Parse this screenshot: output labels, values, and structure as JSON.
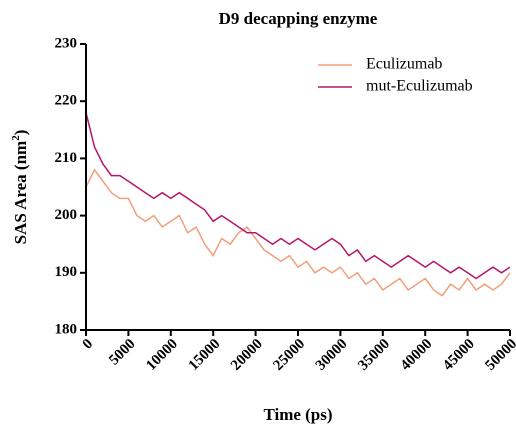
{
  "chart_data": {
    "type": "line",
    "title": "D9 decapping enzyme",
    "xlabel": "Time (ps)",
    "ylabel": "SAS Area (nm",
    "ylabel_sup": "2",
    "ylabel_end": ")",
    "x": [
      0,
      1000,
      2000,
      3000,
      4000,
      5000,
      6000,
      7000,
      8000,
      9000,
      10000,
      11000,
      12000,
      13000,
      14000,
      15000,
      16000,
      17000,
      18000,
      19000,
      20000,
      21000,
      22000,
      23000,
      24000,
      25000,
      26000,
      27000,
      28000,
      29000,
      30000,
      31000,
      32000,
      33000,
      34000,
      35000,
      36000,
      37000,
      38000,
      39000,
      40000,
      41000,
      42000,
      43000,
      44000,
      45000,
      46000,
      47000,
      48000,
      49000,
      50000
    ],
    "series": [
      {
        "name": "Eculizumab",
        "color": "#f0a07a",
        "values": [
          205,
          208,
          206,
          204,
          203,
          203,
          200,
          199,
          200,
          198,
          199,
          200,
          197,
          198,
          195,
          193,
          196,
          195,
          197,
          198,
          196,
          194,
          193,
          192,
          193,
          191,
          192,
          190,
          191,
          190,
          191,
          189,
          190,
          188,
          189,
          187,
          188,
          189,
          187,
          188,
          189,
          187,
          186,
          188,
          187,
          189,
          187,
          188,
          187,
          188,
          190
        ]
      },
      {
        "name": "mut-Eculizumab",
        "color": "#b5156b",
        "values": [
          218,
          212,
          209,
          207,
          207,
          206,
          205,
          204,
          203,
          204,
          203,
          204,
          203,
          202,
          201,
          199,
          200,
          199,
          198,
          197,
          197,
          196,
          195,
          196,
          195,
          196,
          195,
          194,
          195,
          196,
          195,
          193,
          194,
          192,
          193,
          192,
          191,
          192,
          193,
          192,
          191,
          192,
          191,
          190,
          191,
          190,
          189,
          190,
          191,
          190,
          191
        ]
      }
    ],
    "xlim": [
      0,
      50000
    ],
    "xticks": [
      0,
      5000,
      10000,
      15000,
      20000,
      25000,
      30000,
      35000,
      40000,
      45000,
      50000
    ],
    "ylim": [
      180,
      230
    ],
    "yticks": [
      180,
      190,
      200,
      210,
      220,
      230
    ],
    "legend": "upper right"
  }
}
